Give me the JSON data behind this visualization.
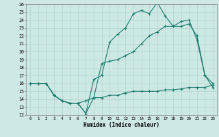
{
  "xlabel": "Humidex (Indice chaleur)",
  "bg_color": "#cde8e5",
  "line_color": "#1a7a6e",
  "grid_color": "#afd4d0",
  "xlim": [
    -0.5,
    23.5
  ],
  "ylim": [
    12,
    26
  ],
  "xticks": [
    0,
    1,
    2,
    3,
    4,
    5,
    6,
    7,
    8,
    9,
    10,
    11,
    12,
    13,
    14,
    15,
    16,
    17,
    18,
    19,
    20,
    21,
    22,
    23
  ],
  "yticks": [
    12,
    13,
    14,
    15,
    16,
    17,
    18,
    19,
    20,
    21,
    22,
    23,
    24,
    25,
    26
  ],
  "line1_x": [
    0,
    1,
    2,
    3,
    4,
    5,
    6,
    7,
    8,
    9,
    10,
    11,
    12,
    13,
    14,
    15,
    16,
    17,
    18,
    19,
    20,
    21,
    22,
    23
  ],
  "line1_y": [
    16.0,
    16.0,
    16.0,
    14.5,
    13.8,
    13.5,
    13.5,
    12.2,
    16.5,
    17.0,
    21.2,
    22.2,
    23.0,
    24.8,
    25.2,
    24.8,
    26.2,
    24.5,
    23.2,
    23.8,
    24.0,
    21.5,
    17.0,
    16.0
  ],
  "line2_x": [
    0,
    1,
    2,
    3,
    4,
    5,
    6,
    7,
    8,
    9,
    10,
    11,
    12,
    13,
    14,
    15,
    16,
    17,
    18,
    19,
    20,
    21,
    22,
    23
  ],
  "line2_y": [
    16.0,
    16.0,
    16.0,
    14.5,
    13.8,
    13.5,
    13.5,
    12.2,
    14.2,
    14.2,
    14.5,
    14.5,
    14.8,
    15.0,
    15.0,
    15.0,
    15.0,
    15.2,
    15.2,
    15.3,
    15.5,
    15.5,
    15.5,
    15.8
  ],
  "line3_x": [
    0,
    1,
    2,
    3,
    4,
    5,
    6,
    7,
    8,
    9,
    10,
    11,
    12,
    13,
    14,
    15,
    16,
    17,
    18,
    19,
    20,
    21,
    22,
    23
  ],
  "line3_y": [
    16.0,
    16.0,
    16.0,
    14.5,
    13.8,
    13.5,
    13.5,
    13.8,
    14.2,
    18.5,
    18.8,
    19.0,
    19.5,
    20.0,
    21.0,
    22.0,
    22.5,
    23.2,
    23.2,
    23.2,
    23.5,
    22.0,
    17.0,
    15.5
  ]
}
